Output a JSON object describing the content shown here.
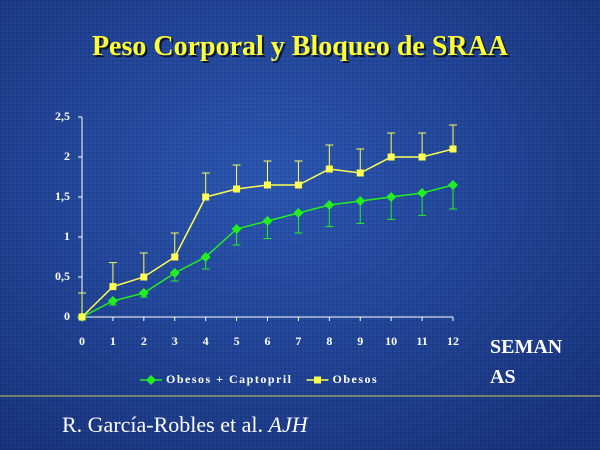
{
  "chart_data": {
    "type": "line",
    "title": "Peso Corporal y Bloqueo de SRAA",
    "x_label": [
      "SEMAN",
      "AS"
    ],
    "x": [
      0,
      1,
      2,
      3,
      4,
      5,
      6,
      7,
      8,
      9,
      10,
      11,
      12
    ],
    "xlim": [
      0,
      12
    ],
    "xticks": [
      0,
      1,
      2,
      3,
      4,
      5,
      6,
      7,
      8,
      9,
      10,
      11,
      12
    ],
    "ylim": [
      0,
      2.5
    ],
    "yticks": [
      0,
      {
        "value": 0.5,
        "label": "0,5"
      },
      1,
      {
        "value": 1.5,
        "label": "1,5"
      },
      2,
      {
        "value": 2.5,
        "label": "2,5"
      }
    ],
    "legend": "bottom",
    "series": [
      {
        "name": "Obesos + Captopril",
        "color": "#22ee22",
        "marker": "diamond",
        "error_direction": "down",
        "values": [
          0,
          0.2,
          0.3,
          0.55,
          0.75,
          1.1,
          1.2,
          1.3,
          1.4,
          1.45,
          1.5,
          1.55,
          1.65
        ],
        "errors": [
          0,
          0.05,
          0.05,
          0.1,
          0.15,
          0.2,
          0.22,
          0.25,
          0.27,
          0.28,
          0.28,
          0.28,
          0.3
        ]
      },
      {
        "name": "Obesos",
        "color": "#ffff55",
        "marker": "square",
        "error_direction": "up",
        "values": [
          0,
          0.38,
          0.5,
          0.75,
          1.5,
          1.6,
          1.65,
          1.65,
          1.85,
          1.8,
          2.0,
          2.0,
          2.1
        ],
        "errors": [
          0.3,
          0.3,
          0.3,
          0.3,
          0.3,
          0.3,
          0.3,
          0.3,
          0.3,
          0.3,
          0.3,
          0.3,
          0.3
        ]
      }
    ]
  },
  "citation": {
    "authors": "R. García-Robles et al.",
    "journal": "AJH"
  }
}
